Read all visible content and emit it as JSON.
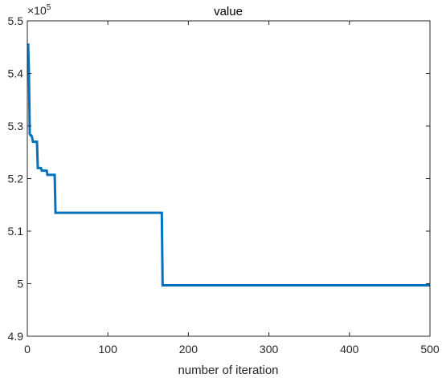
{
  "chart_data": {
    "type": "line",
    "title": "value",
    "xlabel": "number of iteration",
    "ylabel": "",
    "xlim": [
      0,
      500
    ],
    "ylim": [
      4.9,
      5.5
    ],
    "y_multiplier_label": "×10",
    "y_multiplier_exponent": "5",
    "grid": false,
    "xticks": [
      0,
      100,
      200,
      300,
      400,
      500
    ],
    "xtick_labels": [
      "0",
      "100",
      "200",
      "300",
      "400",
      "500"
    ],
    "yticks": [
      4.9,
      5.0,
      5.1,
      5.2,
      5.3,
      5.4,
      5.5
    ],
    "ytick_labels": [
      "4.9",
      "5",
      "5.1",
      "5.2",
      "5.3",
      "5.4",
      "5.5"
    ],
    "line_color": "#0072BD",
    "series": [
      {
        "x": [
          1,
          2,
          3,
          4,
          5,
          6,
          7,
          12,
          13,
          17,
          18,
          24,
          25,
          34,
          35,
          167,
          168,
          500
        ],
        "y": [
          5.457,
          5.4,
          5.285,
          5.282,
          5.282,
          5.278,
          5.27,
          5.27,
          5.22,
          5.22,
          5.215,
          5.215,
          5.207,
          5.207,
          5.135,
          5.135,
          4.997,
          4.997
        ],
        "step": true
      }
    ]
  }
}
